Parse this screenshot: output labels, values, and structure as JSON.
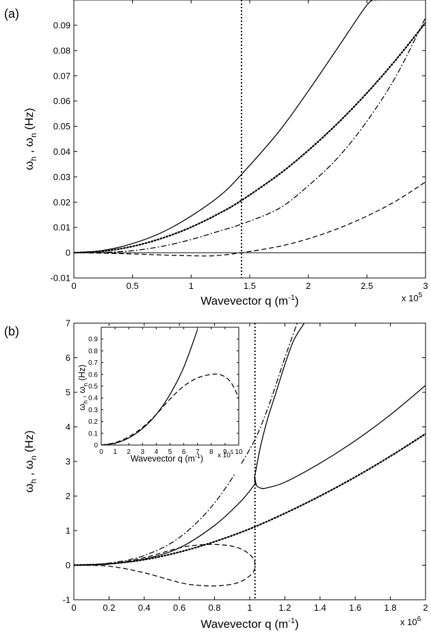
{
  "chart_data": [
    {
      "panel_label": "(a)",
      "type": "line",
      "xlabel": "Wavevector q (m",
      "xlabel_sup": "-1",
      "xlabel_end": ")",
      "ylabel": "ω",
      "ylabel_sub1": "h",
      "ylabel_mid": " , ω",
      "ylabel_sub2": "n",
      "ylabel_end": " (Hz)",
      "x_scale_note": "x 10",
      "x_scale_exp": "5",
      "xlim": [
        0,
        3
      ],
      "ylim": [
        -0.01,
        0.1
      ],
      "x_ticks": [
        "0",
        "0.5",
        "1",
        "1.5",
        "2",
        "2.5",
        "3"
      ],
      "x_tick_values": [
        0,
        0.5,
        1,
        1.5,
        2,
        2.5,
        3
      ],
      "y_ticks": [
        "-0.01",
        "0",
        "0.01",
        "0.02",
        "0.03",
        "0.04",
        "0.05",
        "0.06",
        "0.07",
        "0.08",
        "0.09"
      ],
      "y_tick_values": [
        -0.01,
        0,
        0.01,
        0.02,
        0.03,
        0.04,
        0.05,
        0.06,
        0.07,
        0.08,
        0.09
      ],
      "zero_line": true,
      "vline_x": 1.43,
      "series": [
        {
          "name": "solid",
          "style": "solid",
          "x": [
            0,
            0.25,
            0.5,
            0.75,
            1.0,
            1.25,
            1.43,
            1.75,
            2.0,
            2.25,
            2.5,
            2.58
          ],
          "values": [
            0,
            0.0009,
            0.0036,
            0.008,
            0.0145,
            0.0227,
            0.031,
            0.048,
            0.064,
            0.081,
            0.098,
            0.1
          ]
        },
        {
          "name": "dotted",
          "style": "dotted",
          "x": [
            0,
            0.25,
            0.5,
            0.75,
            1.0,
            1.25,
            1.43,
            1.75,
            2.0,
            2.25,
            2.5,
            2.75,
            3.0
          ],
          "values": [
            0,
            0.0006,
            0.0025,
            0.0057,
            0.0101,
            0.0158,
            0.0207,
            0.031,
            0.0405,
            0.0512,
            0.0632,
            0.0765,
            0.091
          ]
        },
        {
          "name": "dash-dot",
          "style": "dashdot",
          "x": [
            0,
            0.25,
            0.5,
            0.75,
            1.0,
            1.25,
            1.43,
            1.75,
            2.0,
            2.25,
            2.5,
            2.75,
            3.0
          ],
          "values": [
            0,
            0.00012,
            0.0008,
            0.0025,
            0.0052,
            0.0087,
            0.0113,
            0.0175,
            0.0265,
            0.0375,
            0.052,
            0.07,
            0.093
          ]
        },
        {
          "name": "dashed",
          "style": "dashed",
          "x": [
            0,
            0.25,
            0.5,
            0.75,
            1.0,
            1.2,
            1.43,
            1.75,
            2.0,
            2.25,
            2.5,
            2.75,
            3.0
          ],
          "values": [
            0,
            -0.0002,
            -0.0005,
            -0.0009,
            -0.0012,
            -0.0012,
            0,
            0.0025,
            0.0055,
            0.0095,
            0.0145,
            0.0205,
            0.028
          ]
        }
      ]
    },
    {
      "panel_label": "(b)",
      "type": "line",
      "xlabel": "Wavevector q (m",
      "xlabel_sup": "-1",
      "xlabel_end": ")",
      "ylabel": "ω",
      "ylabel_sub1": "h",
      "ylabel_mid": " , ω",
      "ylabel_sub2": "n",
      "ylabel_end": " (Hz)",
      "x_scale_note": "x 10",
      "x_scale_exp": "6",
      "xlim": [
        0,
        2
      ],
      "ylim": [
        -1,
        7
      ],
      "x_ticks": [
        "0",
        "0.2",
        "0.4",
        "0.6",
        "0.8",
        "1",
        "1.2",
        "1.4",
        "1.6",
        "1.8",
        "2"
      ],
      "x_tick_values": [
        0,
        0.2,
        0.4,
        0.6,
        0.8,
        1.0,
        1.2,
        1.4,
        1.6,
        1.8,
        2.0
      ],
      "y_ticks": [
        "-1",
        "0",
        "1",
        "2",
        "3",
        "4",
        "5",
        "6",
        "7"
      ],
      "y_tick_values": [
        -1,
        0,
        1,
        2,
        3,
        4,
        5,
        6,
        7
      ],
      "vline_x": 1.03,
      "series": [
        {
          "name": "solid-lower",
          "style": "solid",
          "x": [
            0,
            0.2,
            0.4,
            0.6,
            0.8,
            0.95,
            1.03
          ],
          "values": [
            0,
            0.04,
            0.18,
            0.5,
            1.15,
            1.85,
            2.35
          ]
        },
        {
          "name": "solid-loop",
          "style": "solid",
          "x": [
            1.03,
            1.028,
            1.04,
            1.07,
            1.1,
            1.2,
            1.4,
            1.6,
            1.8,
            2.0
          ],
          "values": [
            2.35,
            2.55,
            2.3,
            2.22,
            2.24,
            2.4,
            2.95,
            3.6,
            4.35,
            5.2
          ]
        },
        {
          "name": "solid-upper",
          "style": "solid",
          "x": [
            1.028,
            1.06,
            1.1,
            1.15,
            1.2,
            1.25,
            1.31
          ],
          "values": [
            2.55,
            3.4,
            4.2,
            5.0,
            5.8,
            6.5,
            7.0
          ]
        },
        {
          "name": "dotted",
          "style": "dotted",
          "x": [
            0,
            0.2,
            0.4,
            0.6,
            0.8,
            1.0,
            1.2,
            1.4,
            1.6,
            1.8,
            2.0
          ],
          "values": [
            0,
            0.04,
            0.16,
            0.38,
            0.68,
            1.05,
            1.5,
            2.0,
            2.55,
            3.15,
            3.8
          ]
        },
        {
          "name": "dash-dot",
          "style": "dashdot",
          "x": [
            0,
            0.2,
            0.4,
            0.6,
            0.8,
            1.0,
            1.1,
            1.2,
            1.27
          ],
          "values": [
            0,
            0.06,
            0.28,
            0.8,
            1.8,
            3.35,
            4.5,
            6.0,
            7.0
          ]
        },
        {
          "name": "dashed-loop",
          "style": "dashed",
          "x": [
            0,
            0.2,
            0.4,
            0.6,
            0.7,
            0.8,
            0.9,
            0.97,
            1.02,
            1.03,
            1.02,
            0.97,
            0.9,
            0.8,
            0.7,
            0.6,
            0.4,
            0.2,
            0
          ],
          "values": [
            0,
            0.03,
            0.22,
            0.5,
            0.58,
            0.6,
            0.55,
            0.42,
            0.2,
            0,
            -0.2,
            -0.42,
            -0.55,
            -0.6,
            -0.58,
            -0.5,
            -0.22,
            -0.03,
            0
          ]
        }
      ],
      "inset": {
        "type": "line",
        "xlabel": "Wavevector q (m",
        "xlabel_sup": "-1",
        "xlabel_end": ")",
        "ylabel": "ω",
        "ylabel_sub1": "h",
        "ylabel_mid": " , ω",
        "ylabel_sub2": "n",
        "ylabel_end": " (Hz)",
        "x_scale_note": "x 10",
        "x_scale_exp": "5",
        "xlim": [
          0,
          10
        ],
        "ylim": [
          0,
          1
        ],
        "x_ticks": [
          "0",
          "1",
          "2",
          "3",
          "4",
          "5",
          "6",
          "7",
          "8",
          "9",
          "10"
        ],
        "x_tick_values": [
          0,
          1,
          2,
          3,
          4,
          5,
          6,
          7,
          8,
          9,
          10
        ],
        "y_ticks": [
          "0",
          "0.1",
          "0.2",
          "0.3",
          "0.4",
          "0.5",
          "0.6",
          "0.7",
          "0.8",
          "0.9"
        ],
        "y_tick_values": [
          0,
          0.1,
          0.2,
          0.3,
          0.4,
          0.5,
          0.6,
          0.7,
          0.8,
          0.9
        ],
        "series": [
          {
            "name": "solid",
            "style": "solid",
            "x": [
              0,
              1,
              2,
              3,
              4,
              5,
              6,
              7
            ],
            "values": [
              0,
              0.015,
              0.06,
              0.14,
              0.26,
              0.43,
              0.66,
              0.98
            ]
          },
          {
            "name": "dashed",
            "style": "dashed",
            "x": [
              0,
              1,
              2,
              3,
              4,
              5,
              6,
              7,
              8,
              8.5,
              9,
              9.5,
              10
            ],
            "values": [
              0,
              0.02,
              0.07,
              0.15,
              0.26,
              0.39,
              0.5,
              0.57,
              0.6,
              0.6,
              0.58,
              0.52,
              0.4
            ]
          }
        ]
      }
    }
  ]
}
